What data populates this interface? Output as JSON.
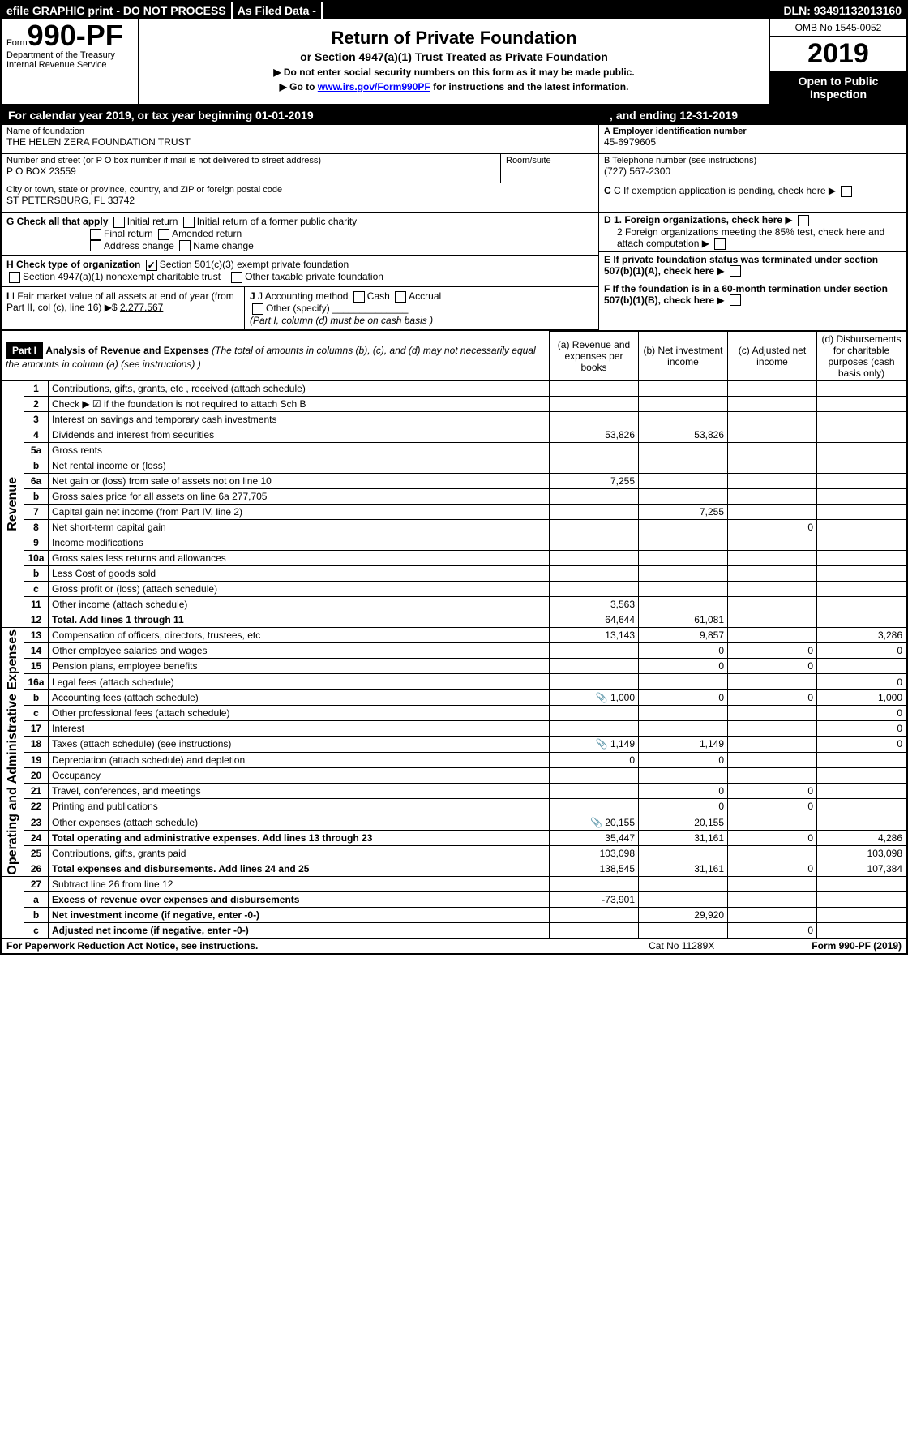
{
  "topbar": {
    "efile": "efile GRAPHIC print - DO NOT PROCESS",
    "asfiled": "As Filed Data -",
    "dln_label": "DLN:",
    "dln": "93491132013160"
  },
  "form": {
    "prefix": "Form",
    "number": "990-PF",
    "dept1": "Department of the Treasury",
    "dept2": "Internal Revenue Service"
  },
  "title": {
    "main": "Return of Private Foundation",
    "sub": "or Section 4947(a)(1) Trust Treated as Private Foundation",
    "instr1": "▶ Do not enter social security numbers on this form as it may be made public.",
    "instr2_a": "▶ Go to ",
    "instr2_link": "www.irs.gov/Form990PF",
    "instr2_b": " for instructions and the latest information."
  },
  "yearbox": {
    "omb": "OMB No 1545-0052",
    "year": "2019",
    "open": "Open to Public Inspection"
  },
  "calendar": {
    "text": "For calendar year 2019, or tax year beginning 01-01-2019",
    "ending": ", and ending 12-31-2019"
  },
  "info": {
    "name_lbl": "Name of foundation",
    "name": "THE HELEN ZERA FOUNDATION TRUST",
    "addr_lbl": "Number and street (or P O  box number if mail is not delivered to street address)",
    "addr": "P O BOX 23559",
    "room_lbl": "Room/suite",
    "city_lbl": "City or town, state or province, country, and ZIP or foreign postal code",
    "city": "ST PETERSBURG, FL  33742",
    "a_lbl": "A Employer identification number",
    "a_val": "45-6979605",
    "b_lbl": "B Telephone number (see instructions)",
    "b_val": "(727) 567-2300",
    "c_lbl": "C If exemption application is pending, check here",
    "d1": "D 1. Foreign organizations, check here",
    "d2": "2 Foreign organizations meeting the 85% test, check here and attach computation",
    "e": "E  If private foundation status was terminated under section 507(b)(1)(A), check here",
    "f": "F  If the foundation is in a 60-month termination under section 507(b)(1)(B), check here"
  },
  "checks": {
    "g_lbl": "G Check all that apply",
    "g1": "Initial return",
    "g2": "Initial return of a former public charity",
    "g3": "Final return",
    "g4": "Amended return",
    "g5": "Address change",
    "g6": "Name change",
    "h_lbl": "H Check type of organization",
    "h1": "Section 501(c)(3) exempt private foundation",
    "h2": "Section 4947(a)(1) nonexempt charitable trust",
    "h3": "Other taxable private foundation",
    "i_lbl": "I Fair market value of all assets at end of year (from Part II, col  (c), line 16) ▶$ ",
    "i_val": "2,277,567",
    "j_lbl": "J Accounting method",
    "j1": "Cash",
    "j2": "Accrual",
    "j3": "Other (specify)",
    "j_note": "(Part I, column (d) must be on cash basis )"
  },
  "part1": {
    "label": "Part I",
    "title": "Analysis of Revenue and Expenses",
    "note": "(The total of amounts in columns (b), (c), and (d) may not necessarily equal the amounts in column (a) (see instructions) )",
    "col_a": "(a) Revenue and expenses per books",
    "col_b": "(b) Net investment income",
    "col_c": "(c) Adjusted net income",
    "col_d": "(d) Disbursements for charitable purposes (cash basis only)",
    "side_revenue": "Revenue",
    "side_expenses": "Operating and Administrative Expenses"
  },
  "rows": [
    {
      "n": "1",
      "t": "Contributions, gifts, grants, etc , received (attach schedule)",
      "a": "",
      "b": "",
      "c": "",
      "d": ""
    },
    {
      "n": "2",
      "t": "Check ▶ ☑ if the foundation is not required to attach Sch B",
      "a": "",
      "b": "",
      "c": "",
      "d": ""
    },
    {
      "n": "3",
      "t": "Interest on savings and temporary cash investments",
      "a": "",
      "b": "",
      "c": "",
      "d": ""
    },
    {
      "n": "4",
      "t": "Dividends and interest from securities",
      "a": "53,826",
      "b": "53,826",
      "c": "",
      "d": ""
    },
    {
      "n": "5a",
      "t": "Gross rents",
      "a": "",
      "b": "",
      "c": "",
      "d": ""
    },
    {
      "n": "b",
      "t": "Net rental income or (loss)",
      "a": "",
      "b": "",
      "c": "",
      "d": ""
    },
    {
      "n": "6a",
      "t": "Net gain or (loss) from sale of assets not on line 10",
      "a": "7,255",
      "b": "",
      "c": "",
      "d": ""
    },
    {
      "n": "b",
      "t": "Gross sales price for all assets on line 6a          277,705",
      "a": "",
      "b": "",
      "c": "",
      "d": ""
    },
    {
      "n": "7",
      "t": "Capital gain net income (from Part IV, line 2)",
      "a": "",
      "b": "7,255",
      "c": "",
      "d": ""
    },
    {
      "n": "8",
      "t": "Net short-term capital gain",
      "a": "",
      "b": "",
      "c": "0",
      "d": ""
    },
    {
      "n": "9",
      "t": "Income modifications",
      "a": "",
      "b": "",
      "c": "",
      "d": ""
    },
    {
      "n": "10a",
      "t": "Gross sales less returns and allowances",
      "a": "",
      "b": "",
      "c": "",
      "d": ""
    },
    {
      "n": "b",
      "t": "Less  Cost of goods sold",
      "a": "",
      "b": "",
      "c": "",
      "d": ""
    },
    {
      "n": "c",
      "t": "Gross profit or (loss) (attach schedule)",
      "a": "",
      "b": "",
      "c": "",
      "d": ""
    },
    {
      "n": "11",
      "t": "Other income (attach schedule)",
      "a": "3,563",
      "b": "",
      "c": "",
      "d": ""
    },
    {
      "n": "12",
      "t": "Total. Add lines 1 through 11",
      "a": "64,644",
      "b": "61,081",
      "c": "",
      "d": "",
      "bold": true
    }
  ],
  "exp_rows": [
    {
      "n": "13",
      "t": "Compensation of officers, directors, trustees, etc",
      "a": "13,143",
      "b": "9,857",
      "c": "",
      "d": "3,286"
    },
    {
      "n": "14",
      "t": "Other employee salaries and wages",
      "a": "",
      "b": "0",
      "c": "0",
      "d": "0"
    },
    {
      "n": "15",
      "t": "Pension plans, employee benefits",
      "a": "",
      "b": "0",
      "c": "0",
      "d": ""
    },
    {
      "n": "16a",
      "t": "Legal fees (attach schedule)",
      "a": "",
      "b": "",
      "c": "",
      "d": "0"
    },
    {
      "n": "b",
      "t": "Accounting fees (attach schedule)",
      "a": "1,000",
      "b": "0",
      "c": "0",
      "d": "1,000",
      "icon": true
    },
    {
      "n": "c",
      "t": "Other professional fees (attach schedule)",
      "a": "",
      "b": "",
      "c": "",
      "d": "0"
    },
    {
      "n": "17",
      "t": "Interest",
      "a": "",
      "b": "",
      "c": "",
      "d": "0"
    },
    {
      "n": "18",
      "t": "Taxes (attach schedule) (see instructions)",
      "a": "1,149",
      "b": "1,149",
      "c": "",
      "d": "0",
      "icon": true
    },
    {
      "n": "19",
      "t": "Depreciation (attach schedule) and depletion",
      "a": "0",
      "b": "0",
      "c": "",
      "d": ""
    },
    {
      "n": "20",
      "t": "Occupancy",
      "a": "",
      "b": "",
      "c": "",
      "d": ""
    },
    {
      "n": "21",
      "t": "Travel, conferences, and meetings",
      "a": "",
      "b": "0",
      "c": "0",
      "d": ""
    },
    {
      "n": "22",
      "t": "Printing and publications",
      "a": "",
      "b": "0",
      "c": "0",
      "d": ""
    },
    {
      "n": "23",
      "t": "Other expenses (attach schedule)",
      "a": "20,155",
      "b": "20,155",
      "c": "",
      "d": "",
      "icon": true
    },
    {
      "n": "24",
      "t": "Total operating and administrative expenses. Add lines 13 through 23",
      "a": "35,447",
      "b": "31,161",
      "c": "0",
      "d": "4,286",
      "bold": true
    },
    {
      "n": "25",
      "t": "Contributions, gifts, grants paid",
      "a": "103,098",
      "b": "",
      "c": "",
      "d": "103,098"
    },
    {
      "n": "26",
      "t": "Total expenses and disbursements. Add lines 24 and 25",
      "a": "138,545",
      "b": "31,161",
      "c": "0",
      "d": "107,384",
      "bold": true
    }
  ],
  "bottom_rows": [
    {
      "n": "27",
      "t": "Subtract line 26 from line 12",
      "a": "",
      "b": "",
      "c": "",
      "d": ""
    },
    {
      "n": "a",
      "t": "Excess of revenue over expenses and disbursements",
      "a": "-73,901",
      "b": "",
      "c": "",
      "d": "",
      "bold": true
    },
    {
      "n": "b",
      "t": "Net investment income (if negative, enter -0-)",
      "a": "",
      "b": "29,920",
      "c": "",
      "d": "",
      "bold": true
    },
    {
      "n": "c",
      "t": "Adjusted net income (if negative, enter -0-)",
      "a": "",
      "b": "",
      "c": "0",
      "d": "",
      "bold": true
    }
  ],
  "footer": {
    "left": "For Paperwork Reduction Act Notice, see instructions.",
    "mid": "Cat No  11289X",
    "right": "Form 990-PF (2019)"
  }
}
